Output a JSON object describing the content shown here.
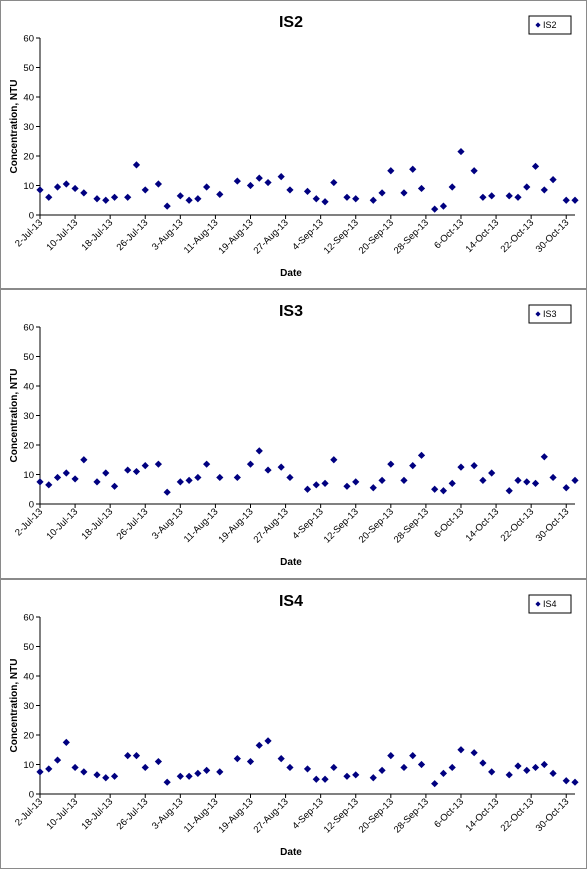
{
  "chart_data": [
    {
      "type": "scatter",
      "title": "IS2",
      "xlabel": "Date",
      "ylabel": "Concentration, NTU",
      "ylim": [
        0,
        60
      ],
      "yticks": [
        "0",
        "10",
        "20",
        "30",
        "40",
        "50",
        "60"
      ],
      "xlim": [
        "2013-07-02",
        "2013-11-01"
      ],
      "xticks": [
        "2-Jul-13",
        "10-Jul-13",
        "18-Jul-13",
        "26-Jul-13",
        "3-Aug-13",
        "11-Aug-13",
        "19-Aug-13",
        "27-Aug-13",
        "4-Sep-13",
        "12-Sep-13",
        "20-Sep-13",
        "28-Sep-13",
        "6-Oct-13",
        "14-Oct-13",
        "22-Oct-13",
        "30-Oct-13"
      ],
      "legend": "top-right",
      "grid": false,
      "marker_color": "#000080",
      "series": [
        {
          "name": "IS2",
          "points": [
            [
              "2013-07-02",
              8.5
            ],
            [
              "2013-07-04",
              6.0
            ],
            [
              "2013-07-06",
              9.5
            ],
            [
              "2013-07-08",
              10.5
            ],
            [
              "2013-07-10",
              9.0
            ],
            [
              "2013-07-12",
              7.5
            ],
            [
              "2013-07-15",
              5.5
            ],
            [
              "2013-07-17",
              5.0
            ],
            [
              "2013-07-19",
              6.0
            ],
            [
              "2013-07-22",
              6.0
            ],
            [
              "2013-07-24",
              17.0
            ],
            [
              "2013-07-26",
              8.5
            ],
            [
              "2013-07-29",
              10.5
            ],
            [
              "2013-07-31",
              3.0
            ],
            [
              "2013-08-03",
              6.5
            ],
            [
              "2013-08-05",
              5.0
            ],
            [
              "2013-08-07",
              5.5
            ],
            [
              "2013-08-09",
              9.5
            ],
            [
              "2013-08-12",
              7.0
            ],
            [
              "2013-08-16",
              11.5
            ],
            [
              "2013-08-19",
              10.0
            ],
            [
              "2013-08-21",
              12.5
            ],
            [
              "2013-08-23",
              11.0
            ],
            [
              "2013-08-26",
              13.0
            ],
            [
              "2013-08-28",
              8.5
            ],
            [
              "2013-09-01",
              8.0
            ],
            [
              "2013-09-03",
              5.5
            ],
            [
              "2013-09-05",
              4.5
            ],
            [
              "2013-09-07",
              11.0
            ],
            [
              "2013-09-10",
              6.0
            ],
            [
              "2013-09-12",
              5.5
            ],
            [
              "2013-09-16",
              5.0
            ],
            [
              "2013-09-18",
              7.5
            ],
            [
              "2013-09-20",
              15.0
            ],
            [
              "2013-09-23",
              7.5
            ],
            [
              "2013-09-25",
              15.5
            ],
            [
              "2013-09-27",
              9.0
            ],
            [
              "2013-09-30",
              2.0
            ],
            [
              "2013-10-02",
              3.0
            ],
            [
              "2013-10-04",
              9.5
            ],
            [
              "2013-10-06",
              21.5
            ],
            [
              "2013-10-09",
              15.0
            ],
            [
              "2013-10-11",
              6.0
            ],
            [
              "2013-10-13",
              6.5
            ],
            [
              "2013-10-17",
              6.5
            ],
            [
              "2013-10-19",
              6.0
            ],
            [
              "2013-10-21",
              9.5
            ],
            [
              "2013-10-23",
              16.5
            ],
            [
              "2013-10-25",
              8.5
            ],
            [
              "2013-10-27",
              12.0
            ],
            [
              "2013-10-30",
              5.0
            ],
            [
              "2013-11-01",
              5.0
            ]
          ]
        }
      ]
    },
    {
      "type": "scatter",
      "title": "IS3",
      "xlabel": "Date",
      "ylabel": "Concentration, NTU",
      "ylim": [
        0,
        60
      ],
      "yticks": [
        "0",
        "10",
        "20",
        "30",
        "40",
        "50",
        "60"
      ],
      "xlim": [
        "2013-07-02",
        "2013-11-01"
      ],
      "xticks": [
        "2-Jul-13",
        "10-Jul-13",
        "18-Jul-13",
        "26-Jul-13",
        "3-Aug-13",
        "11-Aug-13",
        "19-Aug-13",
        "27-Aug-13",
        "4-Sep-13",
        "12-Sep-13",
        "20-Sep-13",
        "28-Sep-13",
        "6-Oct-13",
        "14-Oct-13",
        "22-Oct-13",
        "30-Oct-13"
      ],
      "legend": "top-right",
      "grid": false,
      "marker_color": "#000080",
      "series": [
        {
          "name": "IS3",
          "points": [
            [
              "2013-07-02",
              7.5
            ],
            [
              "2013-07-04",
              6.5
            ],
            [
              "2013-07-06",
              9.0
            ],
            [
              "2013-07-08",
              10.5
            ],
            [
              "2013-07-10",
              8.5
            ],
            [
              "2013-07-12",
              15.0
            ],
            [
              "2013-07-15",
              7.5
            ],
            [
              "2013-07-17",
              10.5
            ],
            [
              "2013-07-19",
              6.0
            ],
            [
              "2013-07-22",
              11.5
            ],
            [
              "2013-07-24",
              11.0
            ],
            [
              "2013-07-26",
              13.0
            ],
            [
              "2013-07-29",
              13.5
            ],
            [
              "2013-07-31",
              4.0
            ],
            [
              "2013-08-03",
              7.5
            ],
            [
              "2013-08-05",
              8.0
            ],
            [
              "2013-08-07",
              9.0
            ],
            [
              "2013-08-09",
              13.5
            ],
            [
              "2013-08-12",
              9.0
            ],
            [
              "2013-08-16",
              9.0
            ],
            [
              "2013-08-19",
              13.5
            ],
            [
              "2013-08-21",
              18.0
            ],
            [
              "2013-08-23",
              11.5
            ],
            [
              "2013-08-26",
              12.5
            ],
            [
              "2013-08-28",
              9.0
            ],
            [
              "2013-09-01",
              5.0
            ],
            [
              "2013-09-03",
              6.5
            ],
            [
              "2013-09-05",
              7.0
            ],
            [
              "2013-09-07",
              15.0
            ],
            [
              "2013-09-10",
              6.0
            ],
            [
              "2013-09-12",
              7.5
            ],
            [
              "2013-09-16",
              5.5
            ],
            [
              "2013-09-18",
              8.0
            ],
            [
              "2013-09-20",
              13.5
            ],
            [
              "2013-09-23",
              8.0
            ],
            [
              "2013-09-25",
              13.0
            ],
            [
              "2013-09-27",
              16.5
            ],
            [
              "2013-09-30",
              5.0
            ],
            [
              "2013-10-02",
              4.5
            ],
            [
              "2013-10-04",
              7.0
            ],
            [
              "2013-10-06",
              12.5
            ],
            [
              "2013-10-09",
              13.0
            ],
            [
              "2013-10-11",
              8.0
            ],
            [
              "2013-10-13",
              10.5
            ],
            [
              "2013-10-17",
              4.5
            ],
            [
              "2013-10-19",
              8.0
            ],
            [
              "2013-10-21",
              7.5
            ],
            [
              "2013-10-23",
              7.0
            ],
            [
              "2013-10-25",
              16.0
            ],
            [
              "2013-10-27",
              9.0
            ],
            [
              "2013-10-30",
              5.5
            ],
            [
              "2013-11-01",
              8.0
            ]
          ]
        }
      ]
    },
    {
      "type": "scatter",
      "title": "IS4",
      "xlabel": "Date",
      "ylabel": "Concentration, NTU",
      "ylim": [
        0,
        60
      ],
      "yticks": [
        "0",
        "10",
        "20",
        "30",
        "40",
        "50",
        "60"
      ],
      "xlim": [
        "2013-07-02",
        "2013-11-01"
      ],
      "xticks": [
        "2-Jul-13",
        "10-Jul-13",
        "18-Jul-13",
        "26-Jul-13",
        "3-Aug-13",
        "11-Aug-13",
        "19-Aug-13",
        "27-Aug-13",
        "4-Sep-13",
        "12-Sep-13",
        "20-Sep-13",
        "28-Sep-13",
        "6-Oct-13",
        "14-Oct-13",
        "22-Oct-13",
        "30-Oct-13"
      ],
      "legend": "top-right",
      "grid": false,
      "marker_color": "#000080",
      "series": [
        {
          "name": "IS4",
          "points": [
            [
              "2013-07-02",
              7.5
            ],
            [
              "2013-07-04",
              8.5
            ],
            [
              "2013-07-06",
              11.5
            ],
            [
              "2013-07-08",
              17.5
            ],
            [
              "2013-07-10",
              9.0
            ],
            [
              "2013-07-12",
              7.5
            ],
            [
              "2013-07-15",
              6.5
            ],
            [
              "2013-07-17",
              5.5
            ],
            [
              "2013-07-19",
              6.0
            ],
            [
              "2013-07-22",
              13.0
            ],
            [
              "2013-07-24",
              13.0
            ],
            [
              "2013-07-26",
              9.0
            ],
            [
              "2013-07-29",
              11.0
            ],
            [
              "2013-07-31",
              4.0
            ],
            [
              "2013-08-03",
              6.0
            ],
            [
              "2013-08-05",
              6.0
            ],
            [
              "2013-08-07",
              7.0
            ],
            [
              "2013-08-09",
              8.0
            ],
            [
              "2013-08-12",
              7.5
            ],
            [
              "2013-08-16",
              12.0
            ],
            [
              "2013-08-19",
              11.0
            ],
            [
              "2013-08-21",
              16.5
            ],
            [
              "2013-08-23",
              18.0
            ],
            [
              "2013-08-26",
              12.0
            ],
            [
              "2013-08-28",
              9.0
            ],
            [
              "2013-09-01",
              8.5
            ],
            [
              "2013-09-03",
              5.0
            ],
            [
              "2013-09-05",
              5.0
            ],
            [
              "2013-09-07",
              9.0
            ],
            [
              "2013-09-10",
              6.0
            ],
            [
              "2013-09-12",
              6.5
            ],
            [
              "2013-09-16",
              5.5
            ],
            [
              "2013-09-18",
              8.0
            ],
            [
              "2013-09-20",
              13.0
            ],
            [
              "2013-09-23",
              9.0
            ],
            [
              "2013-09-25",
              13.0
            ],
            [
              "2013-09-27",
              10.0
            ],
            [
              "2013-09-30",
              3.5
            ],
            [
              "2013-10-02",
              7.0
            ],
            [
              "2013-10-04",
              9.0
            ],
            [
              "2013-10-06",
              15.0
            ],
            [
              "2013-10-09",
              14.0
            ],
            [
              "2013-10-11",
              10.5
            ],
            [
              "2013-10-13",
              7.5
            ],
            [
              "2013-10-17",
              6.5
            ],
            [
              "2013-10-19",
              9.5
            ],
            [
              "2013-10-21",
              8.0
            ],
            [
              "2013-10-23",
              9.0
            ],
            [
              "2013-10-25",
              10.0
            ],
            [
              "2013-10-27",
              7.0
            ],
            [
              "2013-10-30",
              4.5
            ],
            [
              "2013-11-01",
              4.0
            ]
          ]
        }
      ]
    }
  ]
}
